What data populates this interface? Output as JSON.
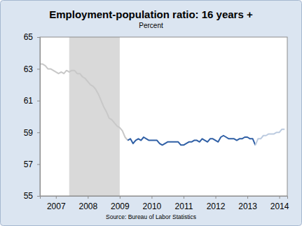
{
  "chart_data": {
    "type": "line",
    "title": "Employment-population ratio: 16 years +",
    "subtitle": "Percent",
    "source": "Source: Bureau of Labor Statistics",
    "x": [
      2007,
      2007.083,
      2007.167,
      2007.25,
      2007.333,
      2007.417,
      2007.5,
      2007.583,
      2007.667,
      2007.75,
      2007.833,
      2007.917,
      2008,
      2008.083,
      2008.167,
      2008.25,
      2008.333,
      2008.417,
      2008.5,
      2008.583,
      2008.667,
      2008.75,
      2008.833,
      2008.917,
      2009,
      2009.083,
      2009.167,
      2009.25,
      2009.333,
      2009.417,
      2009.5,
      2009.583,
      2009.667,
      2009.75,
      2009.833,
      2009.917,
      2010,
      2010.083,
      2010.167,
      2010.25,
      2010.333,
      2010.417,
      2010.5,
      2010.583,
      2010.667,
      2010.75,
      2010.833,
      2010.917,
      2011,
      2011.083,
      2011.167,
      2011.25,
      2011.333,
      2011.417,
      2011.5,
      2011.583,
      2011.667,
      2011.75,
      2011.833,
      2011.917,
      2012,
      2012.083,
      2012.167,
      2012.25,
      2012.333,
      2012.417,
      2012.5,
      2012.583,
      2012.667,
      2012.75,
      2012.833,
      2012.917,
      2013,
      2013.083,
      2013.167,
      2013.25,
      2013.333,
      2013.417,
      2013.5,
      2013.583,
      2013.667,
      2013.75,
      2013.833,
      2013.917,
      2014,
      2014.083,
      2014.167,
      2014.25,
      2014.333,
      2014.417,
      2014.5,
      2014.583,
      2014.667
    ],
    "series": [
      {
        "color": "#c8c8c8",
        "values": [
          63.3,
          63.3,
          63.2,
          63.0,
          63.0,
          62.9,
          62.8,
          62.7,
          62.8,
          62.7,
          62.9,
          62.8,
          62.9,
          62.9,
          62.7,
          62.7,
          62.5,
          62.4,
          62.2,
          62.0,
          61.9,
          61.7,
          61.4,
          61.0,
          60.6,
          60.3,
          59.9,
          59.8,
          59.6,
          59.4,
          59.3,
          59.1,
          58.7,
          58.5,
          null,
          null,
          null,
          null,
          null,
          null,
          null,
          null,
          null,
          null,
          null,
          null,
          null,
          null,
          null,
          null,
          null,
          null,
          null,
          null,
          null,
          null,
          null,
          null,
          null,
          null,
          null,
          null,
          null,
          null,
          null,
          null,
          null,
          null,
          null,
          null,
          null,
          null,
          null,
          null,
          null,
          null,
          null,
          null,
          null,
          null,
          null,
          null,
          null,
          null,
          null,
          null,
          null,
          null,
          null,
          null,
          null,
          null,
          null
        ]
      },
      {
        "color": "#2f5fa5",
        "values": [
          null,
          null,
          null,
          null,
          null,
          null,
          null,
          null,
          null,
          null,
          null,
          null,
          null,
          null,
          null,
          null,
          null,
          null,
          null,
          null,
          null,
          null,
          null,
          null,
          null,
          null,
          null,
          null,
          null,
          null,
          null,
          null,
          null,
          58.5,
          58.6,
          58.3,
          58.5,
          58.6,
          58.5,
          58.7,
          58.6,
          58.5,
          58.5,
          58.5,
          58.5,
          58.3,
          58.2,
          58.3,
          58.4,
          58.4,
          58.4,
          58.4,
          58.4,
          58.2,
          58.2,
          58.3,
          58.4,
          58.4,
          58.5,
          58.5,
          58.4,
          58.6,
          58.5,
          58.4,
          58.6,
          58.6,
          58.5,
          58.4,
          58.7,
          58.8,
          58.7,
          58.6,
          58.6,
          58.6,
          58.5,
          58.6,
          58.6,
          58.7,
          58.7,
          58.6,
          58.6,
          58.2,
          null,
          null,
          null,
          null,
          null,
          null,
          null,
          null,
          null,
          null,
          null
        ]
      },
      {
        "color": "#bccbe0",
        "values": [
          null,
          null,
          null,
          null,
          null,
          null,
          null,
          null,
          null,
          null,
          null,
          null,
          null,
          null,
          null,
          null,
          null,
          null,
          null,
          null,
          null,
          null,
          null,
          null,
          null,
          null,
          null,
          null,
          null,
          null,
          null,
          null,
          null,
          null,
          null,
          null,
          null,
          null,
          null,
          null,
          null,
          null,
          null,
          null,
          null,
          null,
          null,
          null,
          null,
          null,
          null,
          null,
          null,
          null,
          null,
          null,
          null,
          null,
          null,
          null,
          null,
          null,
          null,
          null,
          null,
          null,
          null,
          null,
          null,
          null,
          null,
          null,
          null,
          null,
          null,
          null,
          null,
          null,
          null,
          null,
          null,
          58.2,
          58.6,
          58.6,
          58.8,
          58.8,
          58.9,
          58.9,
          58.9,
          59.0,
          59.0,
          59.2,
          59.2
        ]
      }
    ],
    "recession": [
      2007.917,
      2009.5
    ],
    "xlim": [
      2007,
      2014.75
    ],
    "xticks": [
      {
        "value": 2007.5,
        "label": "2007"
      },
      {
        "value": 2008.5,
        "label": "2008"
      },
      {
        "value": 2009.5,
        "label": "2009"
      },
      {
        "value": 2010.5,
        "label": "2010"
      },
      {
        "value": 2011.5,
        "label": "2011"
      },
      {
        "value": 2012.5,
        "label": "2012"
      },
      {
        "value": 2013.5,
        "label": "2013"
      },
      {
        "value": 2014.5,
        "label": "2014"
      }
    ],
    "ylim": [
      55,
      65
    ],
    "yticks": [
      55,
      57,
      59,
      61,
      63,
      65
    ],
    "grid": false
  }
}
